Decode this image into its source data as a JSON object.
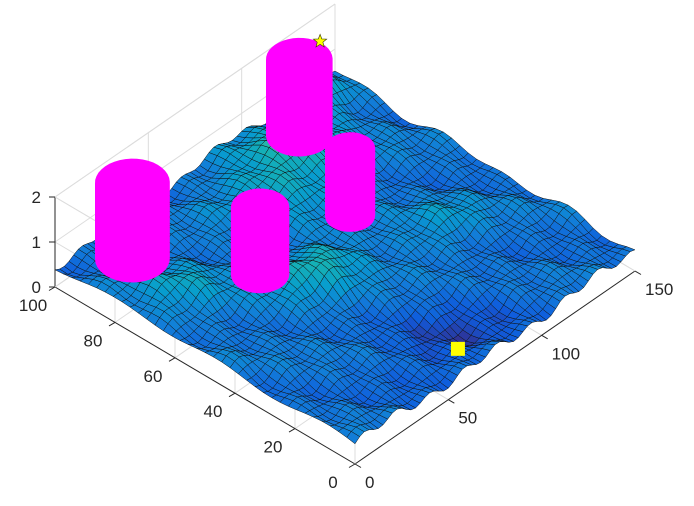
{
  "chart_data": {
    "type": "surface3d",
    "title": "",
    "xlabel": "",
    "ylabel": "",
    "zlabel": "",
    "xlim": [
      0,
      150
    ],
    "ylim": [
      0,
      100
    ],
    "zlim": [
      0,
      2
    ],
    "grid": true,
    "colormap": "parula",
    "x_ticks": [
      {
        "value": 0,
        "label": "0"
      },
      {
        "value": 50,
        "label": "50"
      },
      {
        "value": 100,
        "label": "100"
      },
      {
        "value": 150,
        "label": "150"
      }
    ],
    "y_ticks": [
      {
        "value": 0,
        "label": "0"
      },
      {
        "value": 20,
        "label": "20"
      },
      {
        "value": 40,
        "label": "40"
      },
      {
        "value": 60,
        "label": "60"
      },
      {
        "value": 80,
        "label": "80"
      },
      {
        "value": 100,
        "label": "100"
      }
    ],
    "z_ticks": [
      {
        "value": 0,
        "label": "0"
      },
      {
        "value": 1,
        "label": "1"
      },
      {
        "value": 2,
        "label": "2"
      }
    ],
    "obstacles": [
      {
        "x": 27,
        "y": 91,
        "radius": 9,
        "height": 1.9,
        "color": "#ff00ff"
      },
      {
        "x": 52,
        "y": 64,
        "radius": 7,
        "height": 1.7,
        "color": "#ff00ff"
      },
      {
        "x": 118,
        "y": 92,
        "radius": 8,
        "height": 2.0,
        "color": "#ff00ff"
      },
      {
        "x": 97,
        "y": 62,
        "radius": 6,
        "height": 1.8,
        "color": "#ff00ff"
      }
    ],
    "markers": [
      {
        "name": "start",
        "shape": "square",
        "x": 68,
        "y": 8,
        "z": 0.3,
        "color": "#ffff00"
      },
      {
        "name": "goal",
        "shape": "star",
        "x": 142,
        "y": 100,
        "z": 1.4,
        "color": "#ffff00"
      }
    ]
  }
}
